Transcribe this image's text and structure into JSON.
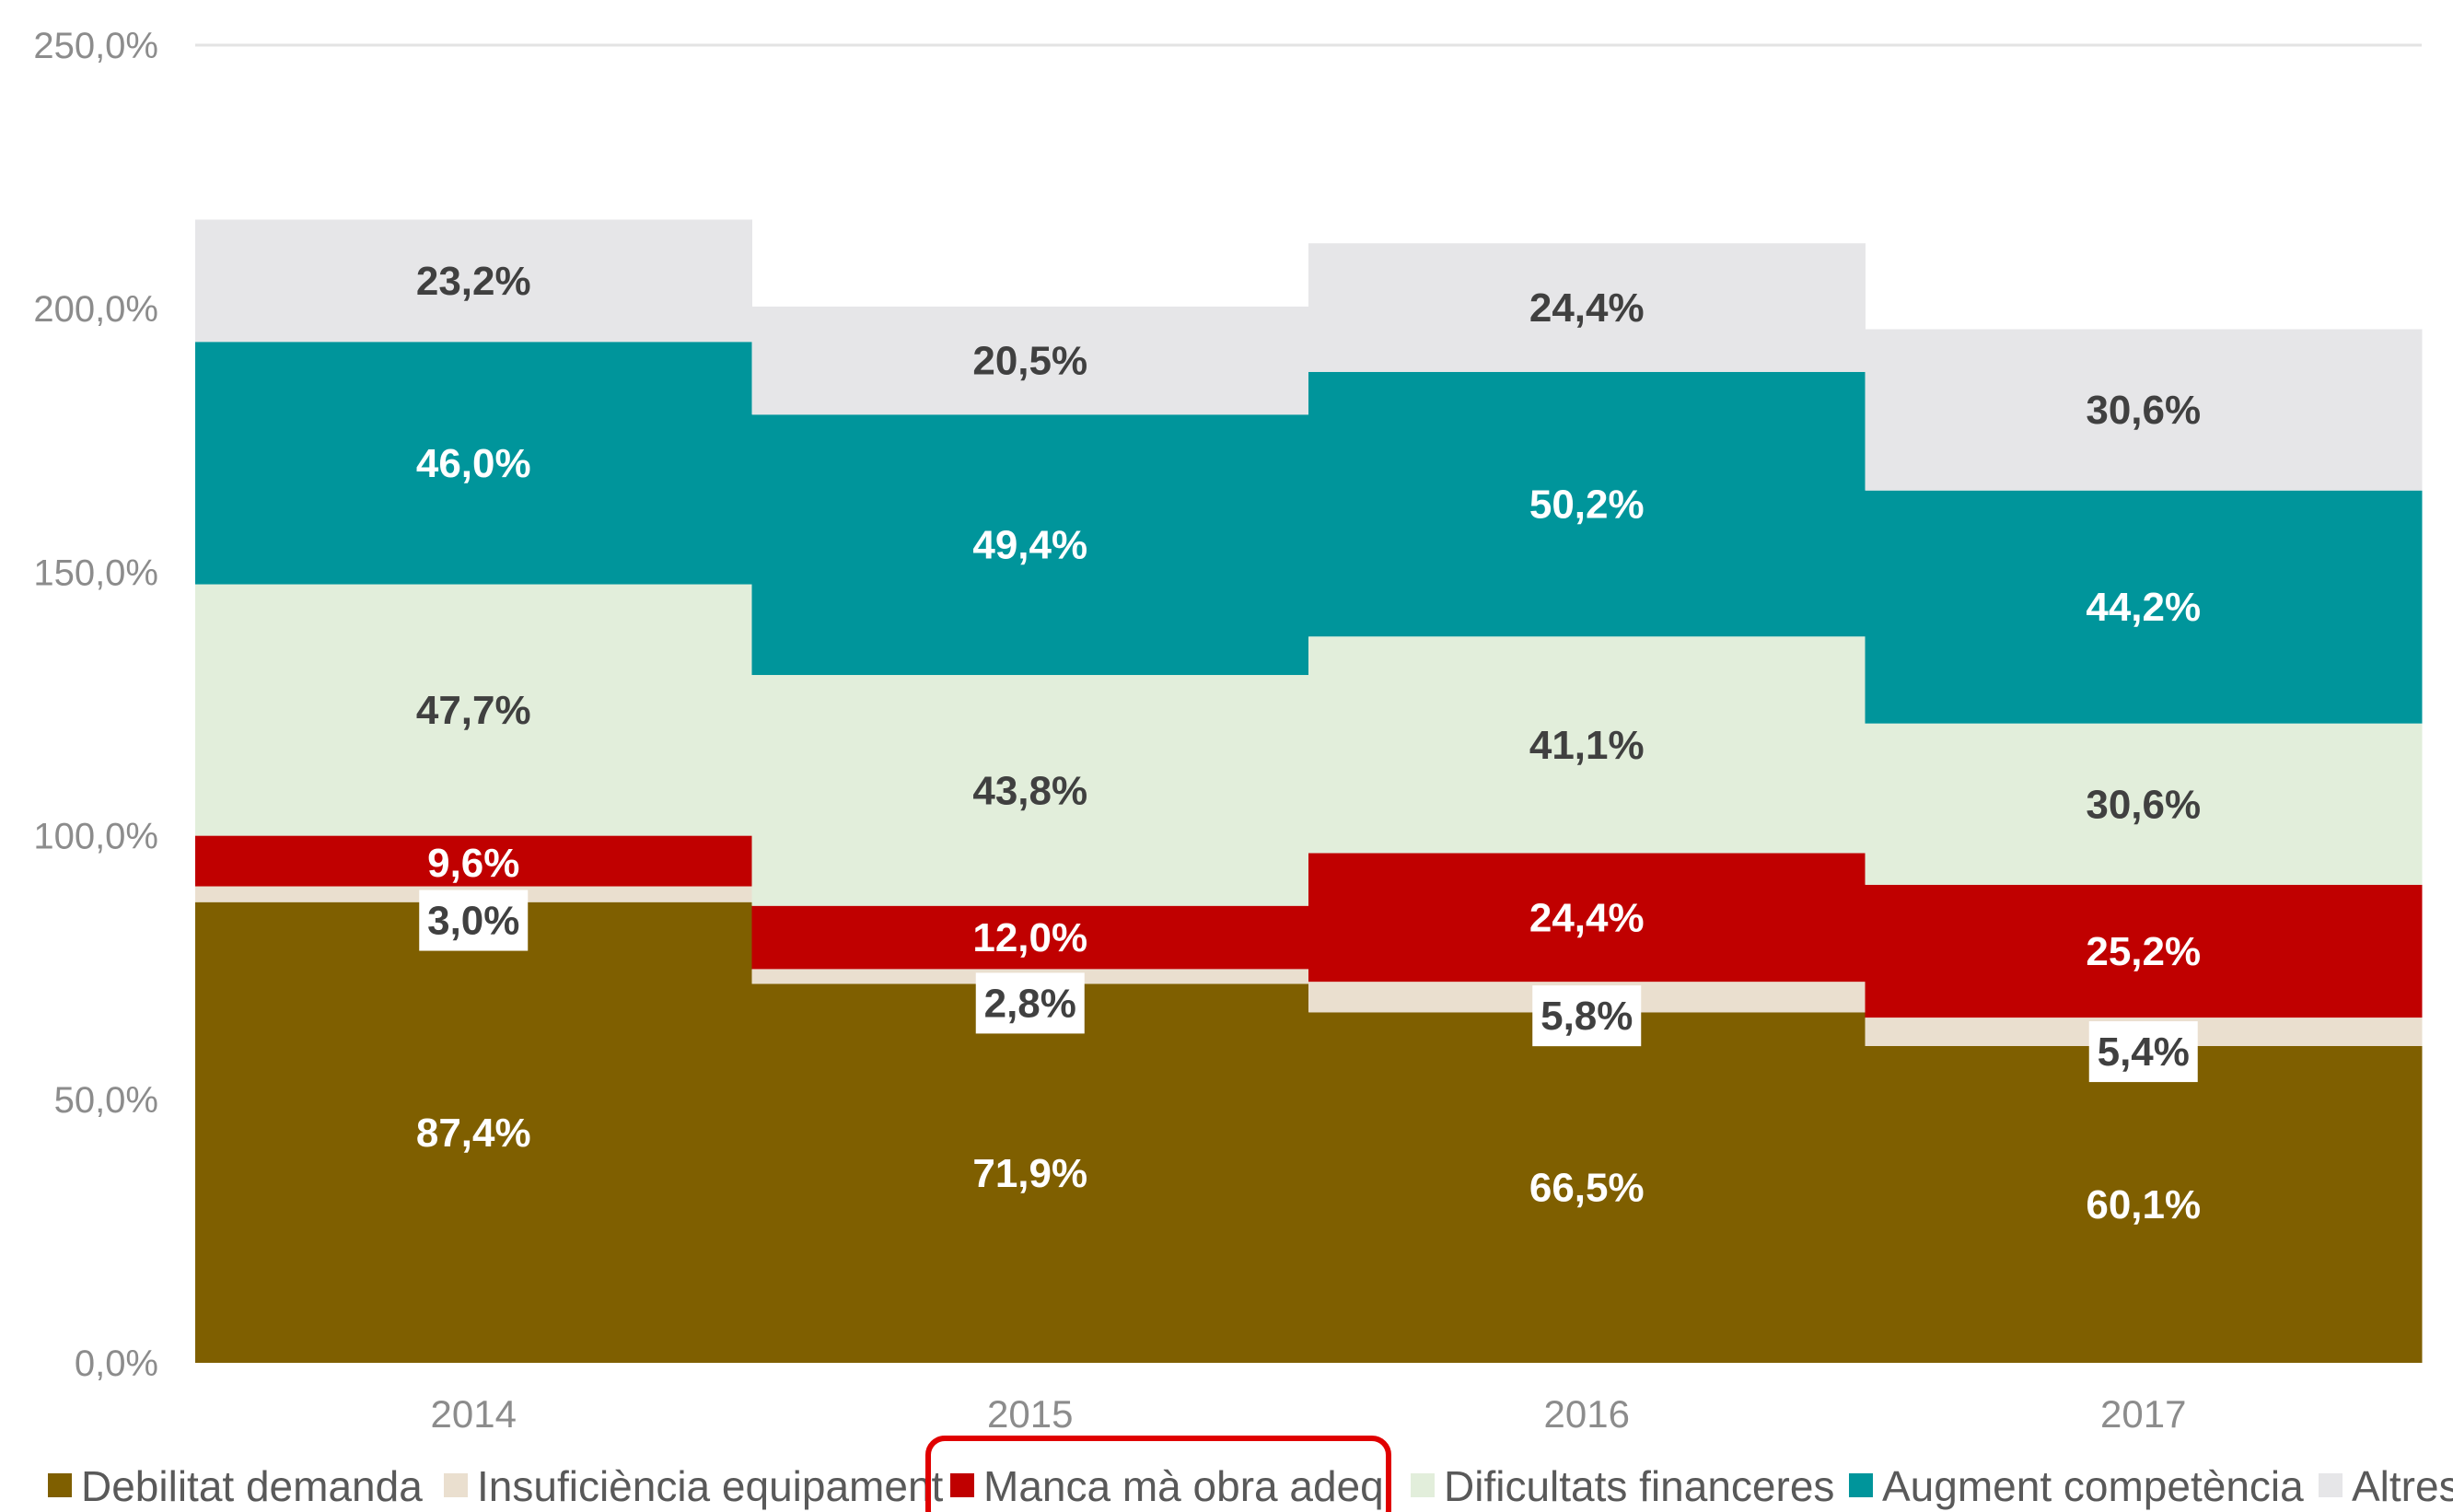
{
  "chart_data": {
    "type": "bar",
    "stacked": true,
    "categories": [
      "2014",
      "2015",
      "2016",
      "2017"
    ],
    "ylim": [
      0,
      250
    ],
    "yticks": [
      "0,0%",
      "50,0%",
      "100,0%",
      "150,0%",
      "200,0%",
      "250,0%"
    ],
    "grid": false,
    "legend_position": "bottom",
    "series": [
      {
        "name": "Debilitat demanda",
        "color": "#7f5f00",
        "label_color": "#ffffff",
        "label_box": false,
        "values": [
          87.4,
          71.9,
          66.5,
          60.1
        ],
        "labels": [
          "87,4%",
          "71,9%",
          "66,5%",
          "60,1%"
        ]
      },
      {
        "name": "Insuficiència equipament",
        "color": "#eadfcf",
        "label_color": "#404040",
        "label_box": true,
        "values": [
          3.0,
          2.8,
          5.8,
          5.4
        ],
        "labels": [
          "3,0%",
          "2,8%",
          "5,8%",
          "5,4%"
        ]
      },
      {
        "name": "Manca mà obra adeq",
        "color": "#c00000",
        "label_color": "#ffffff",
        "label_box": false,
        "values": [
          9.6,
          12.0,
          24.4,
          25.2
        ],
        "labels": [
          "9,6%",
          "12,0%",
          "24,4%",
          "25,2%"
        ]
      },
      {
        "name": "Dificultats financeres",
        "color": "#e2eedb",
        "label_color": "#404040",
        "label_box": false,
        "values": [
          47.7,
          43.8,
          41.1,
          30.6
        ],
        "labels": [
          "47,7%",
          "43,8%",
          "41,1%",
          "30,6%"
        ]
      },
      {
        "name": "Augment competència",
        "color": "#00959b",
        "label_color": "#ffffff",
        "label_box": false,
        "values": [
          46.0,
          49.4,
          50.2,
          44.2
        ],
        "labels": [
          "46,0%",
          "49,4%",
          "50,2%",
          "44,2%"
        ]
      },
      {
        "name": "Altres",
        "color": "#e6e6e8",
        "label_color": "#404040",
        "label_box": false,
        "values": [
          23.2,
          20.5,
          24.4,
          30.6
        ],
        "labels": [
          "23,2%",
          "20,5%",
          "24,4%",
          "30,6%"
        ]
      }
    ],
    "highlighted_legend_item": "Manca mà obra adeq",
    "highlight_color": "#e00000"
  }
}
